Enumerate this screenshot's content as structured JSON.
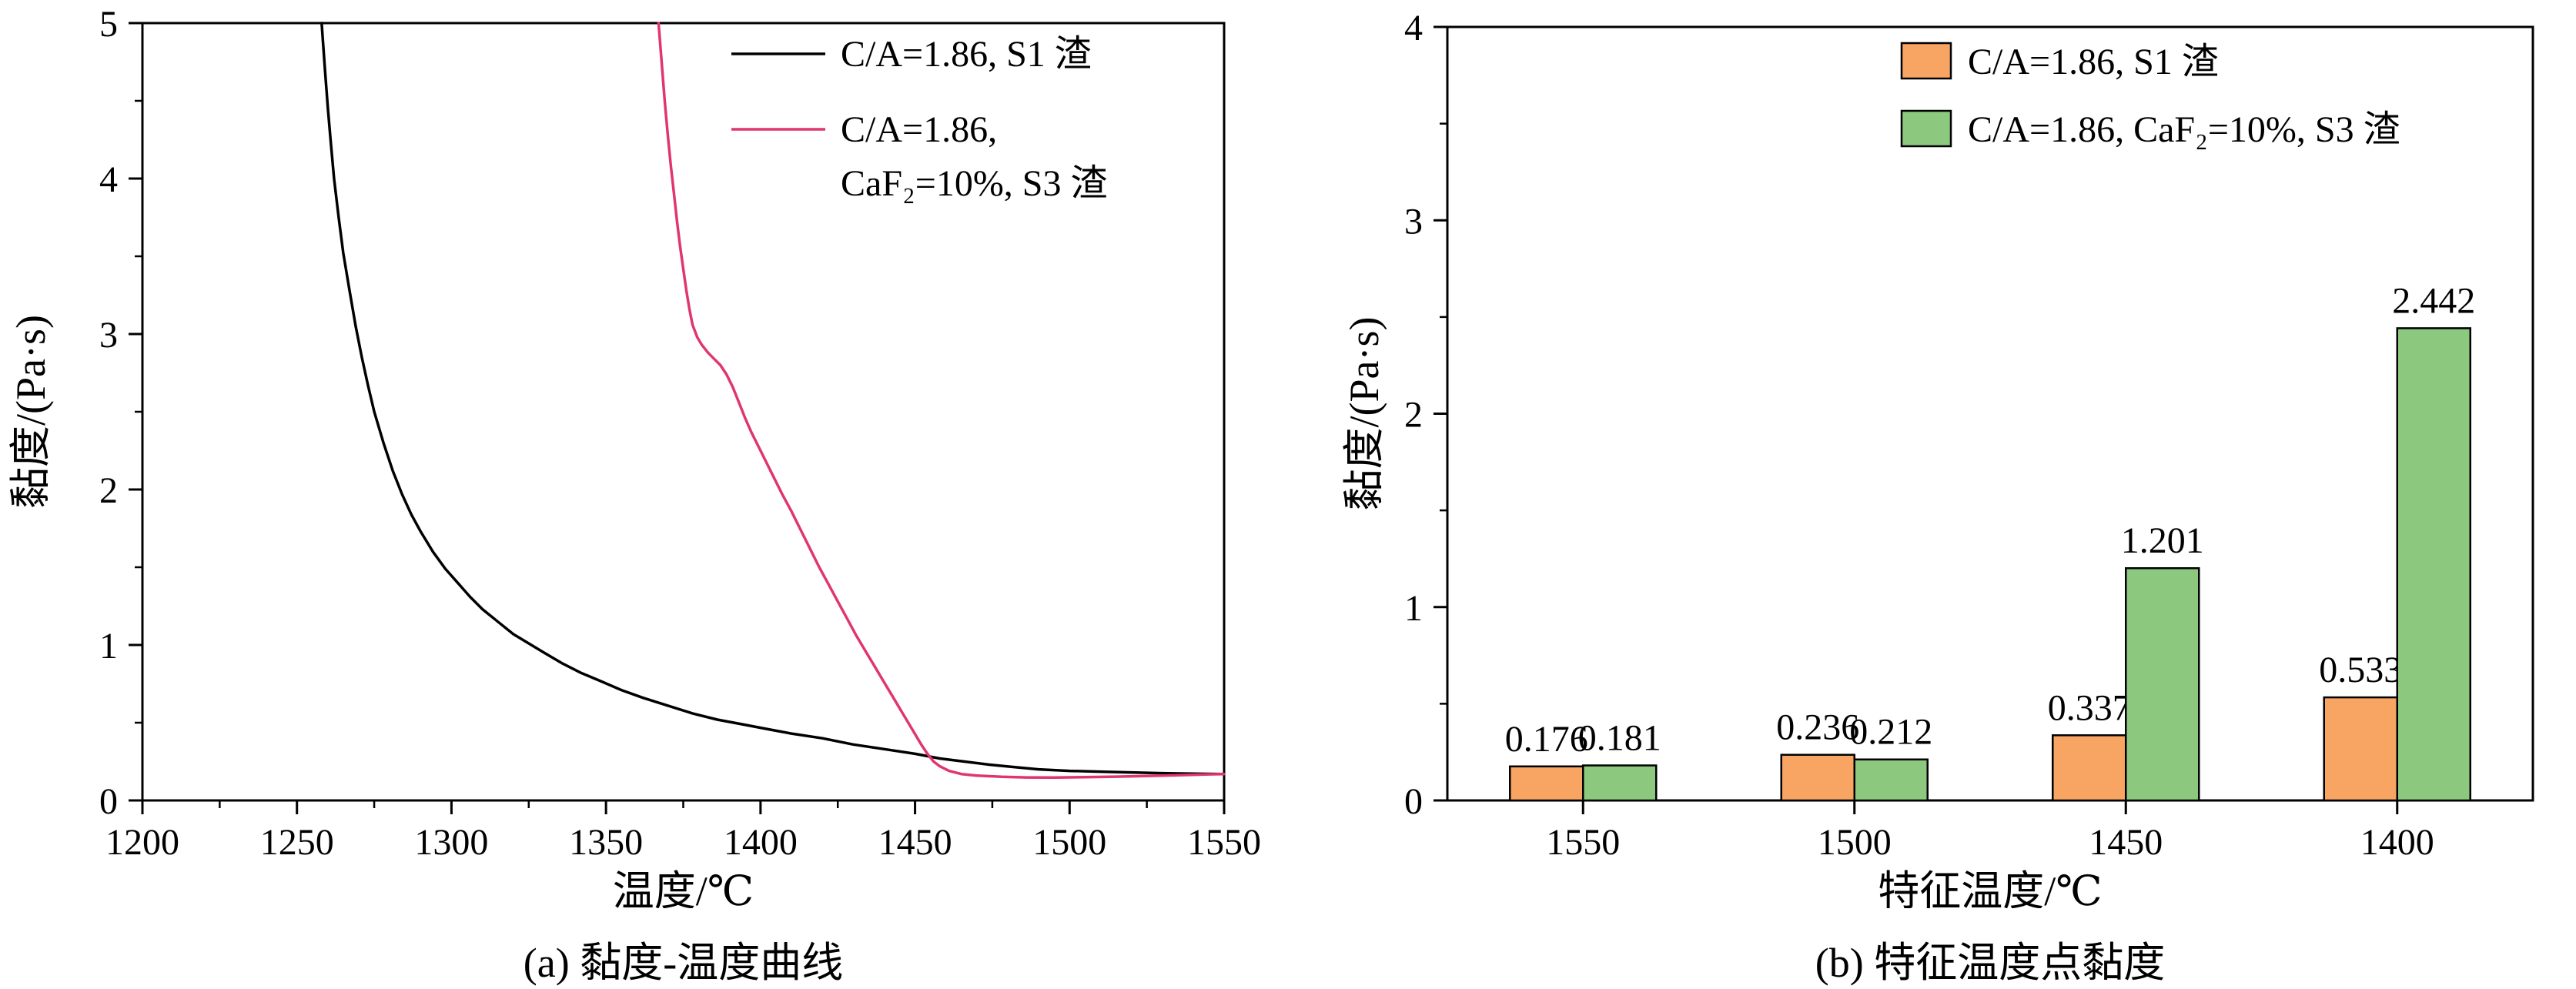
{
  "colors": {
    "background": "#ffffff",
    "axis": "#000000",
    "s1_line": "#000000",
    "s3_line": "#E0366E",
    "s1_bar": "#F8A463",
    "s3_bar": "#8CC87E"
  },
  "chart_data": [
    {
      "id": "viscosity-temperature-curve",
      "type": "line",
      "caption": "(a) 黏度-温度曲线",
      "xlabel": "温度/℃",
      "ylabel": "黏度/(Pa·s)",
      "xlim": [
        1200,
        1550
      ],
      "ylim": [
        0,
        5
      ],
      "x_major_ticks": [
        1200,
        1250,
        1300,
        1350,
        1400,
        1450,
        1500,
        1550
      ],
      "x_minor_step": 25,
      "y_major_ticks": [
        0,
        1,
        2,
        3,
        4,
        5
      ],
      "y_minor_step": 0.5,
      "grid": false,
      "legend_position": "top-right-inside",
      "legend": [
        {
          "label": "C/A=1.86, S1 渣",
          "label2": "",
          "color": "#000000"
        },
        {
          "label": "C/A=1.86,",
          "label2": "CaF₂=10%, S3 渣",
          "color": "#E0366E"
        }
      ],
      "series": [
        {
          "name": "C/A=1.86, S1 渣",
          "color": "#000000",
          "points": [
            [
              1258,
              5.0
            ],
            [
              1259,
              4.72
            ],
            [
              1260,
              4.45
            ],
            [
              1261,
              4.22
            ],
            [
              1262,
              4.0
            ],
            [
              1263.5,
              3.75
            ],
            [
              1265,
              3.52
            ],
            [
              1267,
              3.28
            ],
            [
              1269,
              3.05
            ],
            [
              1271,
              2.85
            ],
            [
              1273,
              2.67
            ],
            [
              1275,
              2.5
            ],
            [
              1278,
              2.3
            ],
            [
              1281,
              2.12
            ],
            [
              1284,
              1.97
            ],
            [
              1287,
              1.84
            ],
            [
              1290,
              1.73
            ],
            [
              1294,
              1.6
            ],
            [
              1298,
              1.49
            ],
            [
              1302,
              1.4
            ],
            [
              1306,
              1.31
            ],
            [
              1310,
              1.23
            ],
            [
              1315,
              1.15
            ],
            [
              1320,
              1.07
            ],
            [
              1325,
              1.01
            ],
            [
              1330,
              0.95
            ],
            [
              1336,
              0.88
            ],
            [
              1342,
              0.82
            ],
            [
              1348,
              0.77
            ],
            [
              1355,
              0.71
            ],
            [
              1362,
              0.66
            ],
            [
              1370,
              0.61
            ],
            [
              1378,
              0.56
            ],
            [
              1386,
              0.52
            ],
            [
              1394,
              0.49
            ],
            [
              1402,
              0.46
            ],
            [
              1410,
              0.43
            ],
            [
              1420,
              0.4
            ],
            [
              1430,
              0.36
            ],
            [
              1440,
              0.33
            ],
            [
              1450,
              0.3
            ],
            [
              1458,
              0.27
            ],
            [
              1466,
              0.25
            ],
            [
              1474,
              0.23
            ],
            [
              1482,
              0.215
            ],
            [
              1490,
              0.2
            ],
            [
              1500,
              0.19
            ],
            [
              1510,
              0.185
            ],
            [
              1520,
              0.18
            ],
            [
              1530,
              0.175
            ],
            [
              1540,
              0.172
            ],
            [
              1550,
              0.17
            ]
          ]
        },
        {
          "name": "C/A=1.86, CaF₂=10%, S3 渣",
          "color": "#E0366E",
          "points": [
            [
              1367,
              5.0
            ],
            [
              1368,
              4.75
            ],
            [
              1369,
              4.5
            ],
            [
              1370,
              4.28
            ],
            [
              1371,
              4.08
            ],
            [
              1372,
              3.9
            ],
            [
              1373,
              3.72
            ],
            [
              1374,
              3.56
            ],
            [
              1375,
              3.42
            ],
            [
              1376,
              3.28
            ],
            [
              1377,
              3.16
            ],
            [
              1378,
              3.06
            ],
            [
              1379.5,
              2.98
            ],
            [
              1381,
              2.93
            ],
            [
              1383,
              2.88
            ],
            [
              1385,
              2.84
            ],
            [
              1387,
              2.8
            ],
            [
              1389,
              2.74
            ],
            [
              1391,
              2.66
            ],
            [
              1393,
              2.56
            ],
            [
              1395,
              2.46
            ],
            [
              1397,
              2.37
            ],
            [
              1399,
              2.29
            ],
            [
              1401,
              2.21
            ],
            [
              1404,
              2.09
            ],
            [
              1407,
              1.97
            ],
            [
              1410,
              1.86
            ],
            [
              1413,
              1.74
            ],
            [
              1416,
              1.62
            ],
            [
              1419,
              1.5
            ],
            [
              1422,
              1.39
            ],
            [
              1425,
              1.28
            ],
            [
              1428,
              1.17
            ],
            [
              1431,
              1.06
            ],
            [
              1434,
              0.96
            ],
            [
              1437,
              0.86
            ],
            [
              1440,
              0.76
            ],
            [
              1443,
              0.66
            ],
            [
              1446,
              0.56
            ],
            [
              1449,
              0.46
            ],
            [
              1452,
              0.36
            ],
            [
              1454,
              0.3
            ],
            [
              1456,
              0.25
            ],
            [
              1458,
              0.22
            ],
            [
              1461,
              0.19
            ],
            [
              1465,
              0.17
            ],
            [
              1470,
              0.16
            ],
            [
              1478,
              0.152
            ],
            [
              1486,
              0.148
            ],
            [
              1495,
              0.147
            ],
            [
              1505,
              0.15
            ],
            [
              1515,
              0.153
            ],
            [
              1525,
              0.157
            ],
            [
              1535,
              0.162
            ],
            [
              1545,
              0.168
            ],
            [
              1550,
              0.17
            ]
          ]
        }
      ]
    },
    {
      "id": "characteristic-temperature-viscosity",
      "type": "bar",
      "caption": "(b) 特征温度点黏度",
      "xlabel": "特征温度/℃",
      "ylabel": "黏度/(Pa·s)",
      "ylim": [
        0,
        4
      ],
      "y_major_ticks": [
        0,
        1,
        2,
        3,
        4
      ],
      "y_minor_step": 0.5,
      "grid": false,
      "legend_position": "top-center-inside",
      "categories": [
        "1550",
        "1500",
        "1450",
        "1400"
      ],
      "series": [
        {
          "name": "C/A=1.86, S1 渣",
          "color": "#F8A463",
          "values": [
            0.176,
            0.236,
            0.337,
            0.533
          ],
          "labels": [
            "0.176",
            "0.236",
            "0.337",
            "0.533"
          ]
        },
        {
          "name": "C/A=1.86, CaF₂=10%, S3 渣",
          "color": "#8CC87E",
          "values": [
            0.181,
            0.212,
            1.201,
            2.442
          ],
          "labels": [
            "0.181",
            "0.212",
            "1.201",
            "2.442"
          ]
        }
      ]
    }
  ]
}
